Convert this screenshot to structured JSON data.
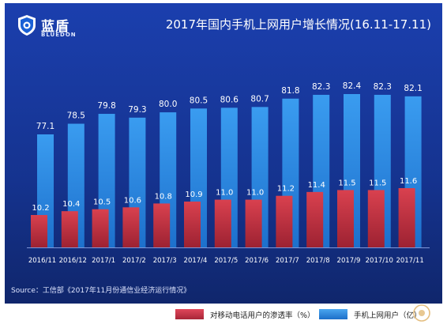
{
  "brand": {
    "name_cn": "蓝盾",
    "name_en": "BLUEDON"
  },
  "title": "2017年国内手机上网用户增长情况(16.11-17.11)",
  "source": "Source：工信部《2017年11月份通信业经济运行情况》",
  "colors": {
    "background_top": "#1b3fae",
    "background_bottom": "#0f2466",
    "blue_bar": "#2d8ee6",
    "red_bar": "#c8384a"
  },
  "chart_data": {
    "type": "bar",
    "categories": [
      "2016/11",
      "2016/12",
      "2017/1",
      "2017/2",
      "2017/3",
      "2017/4",
      "2017/5",
      "2017/6",
      "2017/7",
      "2017/8",
      "2017/9",
      "2017/10",
      "2017/11"
    ],
    "series": [
      {
        "name": "对移动电话用户的渗透率（%）",
        "color": "#c8384a",
        "values": [
          10.2,
          10.4,
          10.5,
          10.6,
          10.8,
          10.9,
          11.0,
          11.0,
          11.2,
          11.4,
          11.5,
          11.5,
          11.6
        ],
        "labels": [
          "10.2",
          "10.4",
          "10.5",
          "10.6",
          "10.8",
          "10.9",
          "11.0",
          "11.0",
          "11.2",
          "11.4",
          "11.5",
          "11.5",
          "11.6"
        ]
      },
      {
        "name": "手机上网用户（亿）",
        "color": "#2d8ee6",
        "values": [
          77.1,
          78.5,
          79.8,
          79.3,
          80.0,
          80.5,
          80.6,
          80.7,
          81.8,
          82.3,
          82.4,
          82.3,
          82.1
        ],
        "labels": [
          "77.1",
          "78.5",
          "79.8",
          "79.3",
          "80.0",
          "80.5",
          "80.6",
          "80.7",
          "81.8",
          "82.3",
          "82.4",
          "82.3",
          "82.1"
        ]
      }
    ],
    "legend": [
      "对移动电话用户的渗透率（%）",
      "手机上网用户（亿）"
    ],
    "legend_position": "bottom",
    "grid": false
  }
}
